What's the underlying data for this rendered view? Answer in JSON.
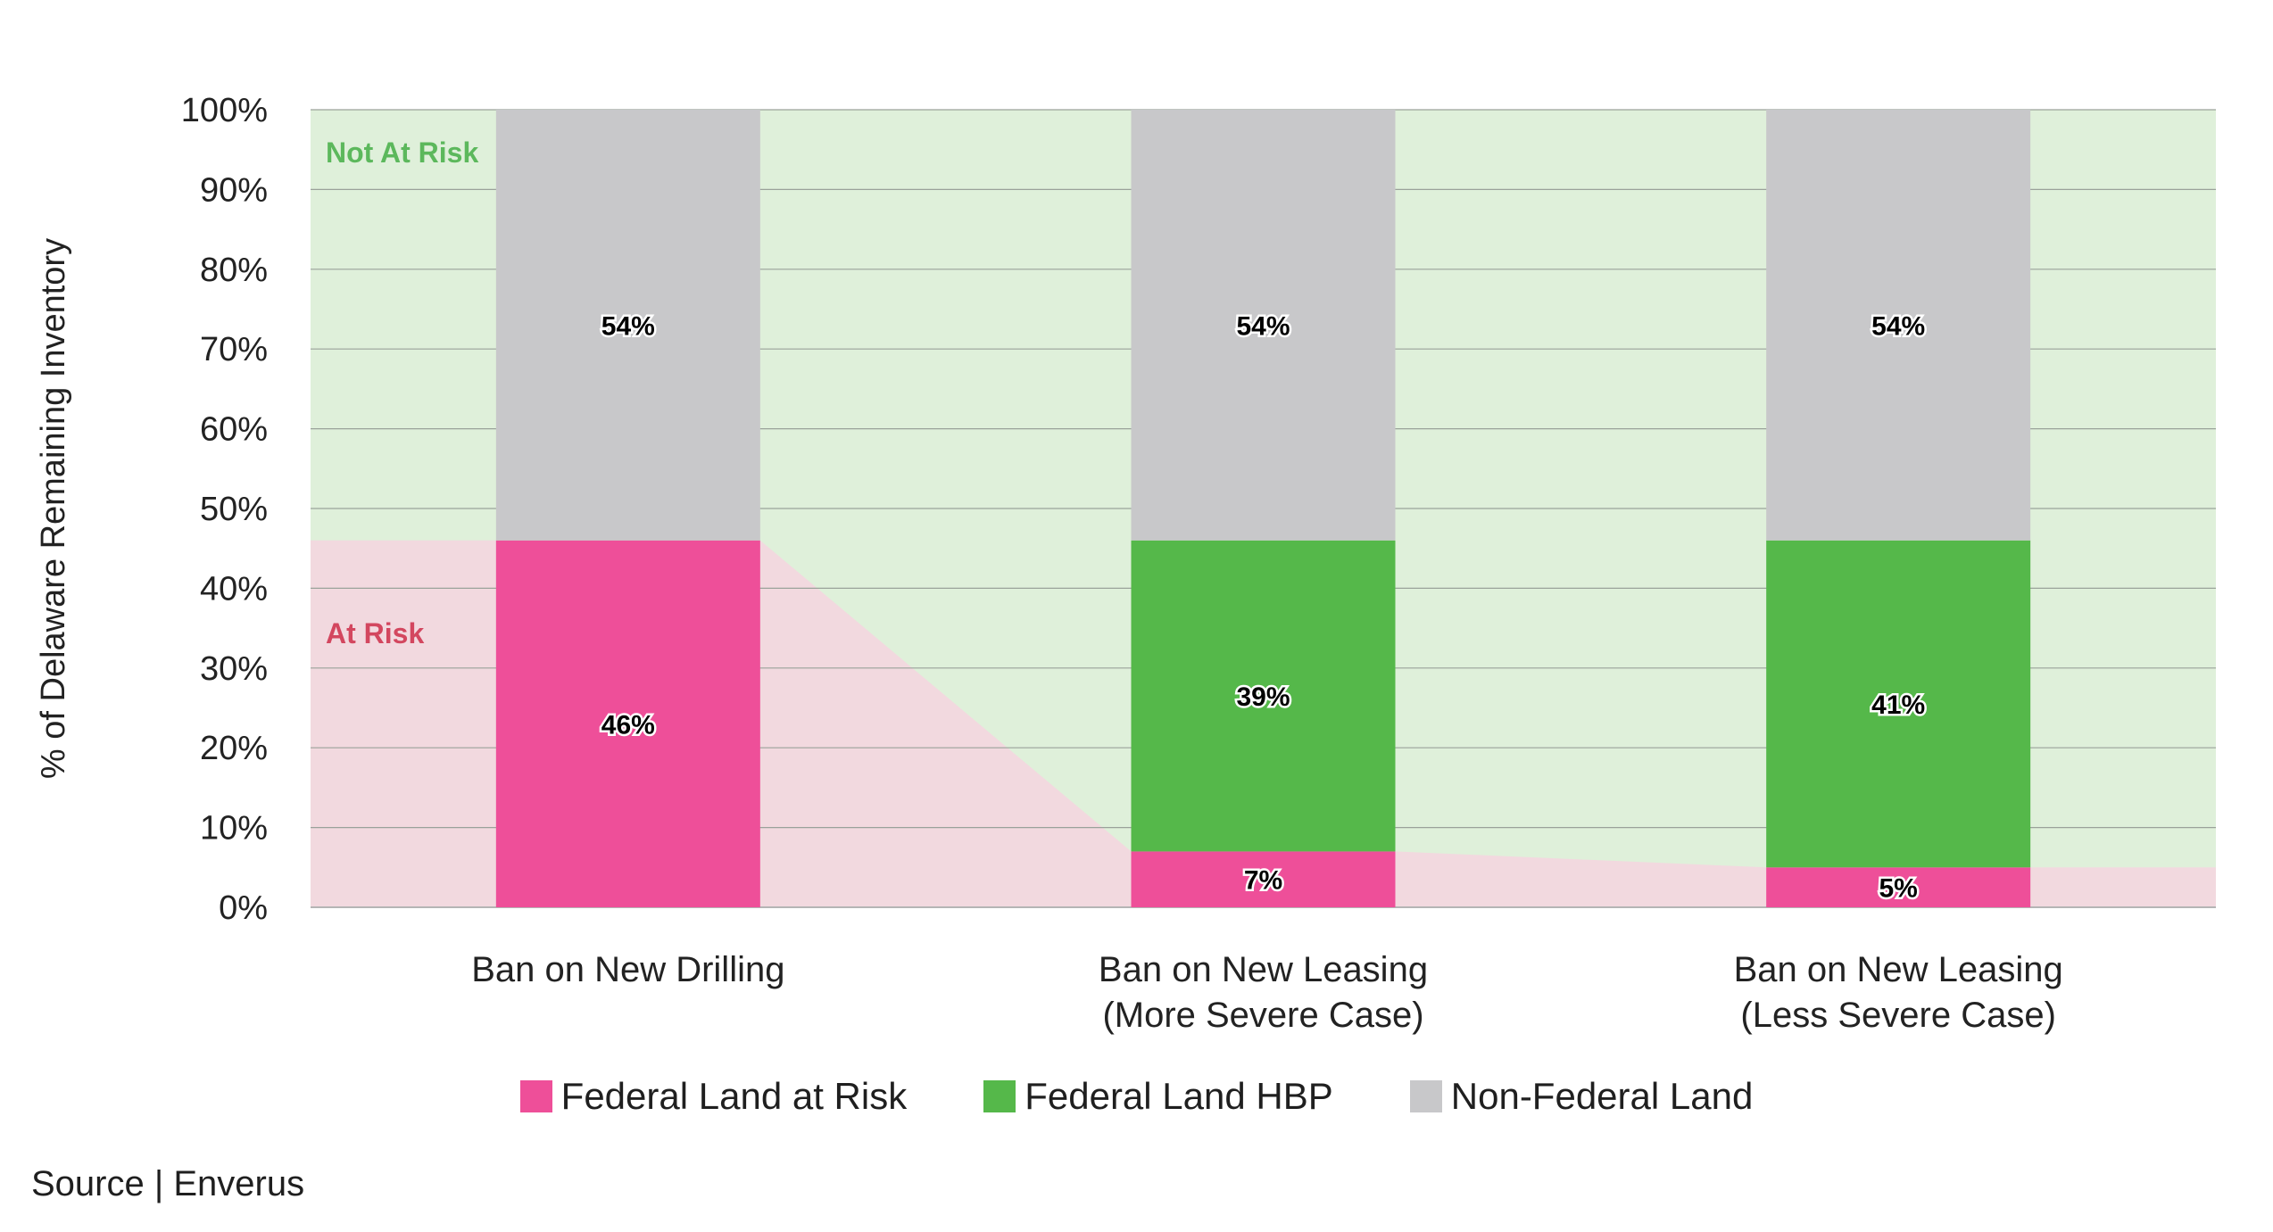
{
  "chart_data": {
    "type": "bar",
    "stacked": true,
    "ylabel": "% of Delaware Remaining Inventory",
    "ylim": [
      0,
      100
    ],
    "yticks": [
      "0%",
      "10%",
      "20%",
      "30%",
      "40%",
      "50%",
      "60%",
      "70%",
      "80%",
      "90%",
      "100%"
    ],
    "grid": true,
    "categories": [
      [
        "Ban on New Drilling"
      ],
      [
        "Ban on New Leasing",
        "(More Severe Case)"
      ],
      [
        "Ban on New Leasing",
        "(Less Severe Case)"
      ]
    ],
    "series": [
      {
        "name": "Federal Land at Risk",
        "color": "#ee4f99",
        "values": [
          46,
          7,
          5
        ]
      },
      {
        "name": "Federal Land HBP",
        "color": "#55b84a",
        "values": [
          0,
          39,
          41
        ]
      },
      {
        "name": "Non-Federal Land",
        "color": "#c8c8ca",
        "values": [
          54,
          54,
          54
        ]
      }
    ],
    "zones": {
      "not_at_risk": {
        "label": "Not At Risk",
        "color": "#dff0da",
        "text_color": "#5cb85c"
      },
      "at_risk": {
        "label": "At Risk",
        "color": "#f2d9df",
        "text_color": "#d3475f"
      }
    },
    "legend_position": "bottom"
  },
  "source": "Source | Enverus"
}
